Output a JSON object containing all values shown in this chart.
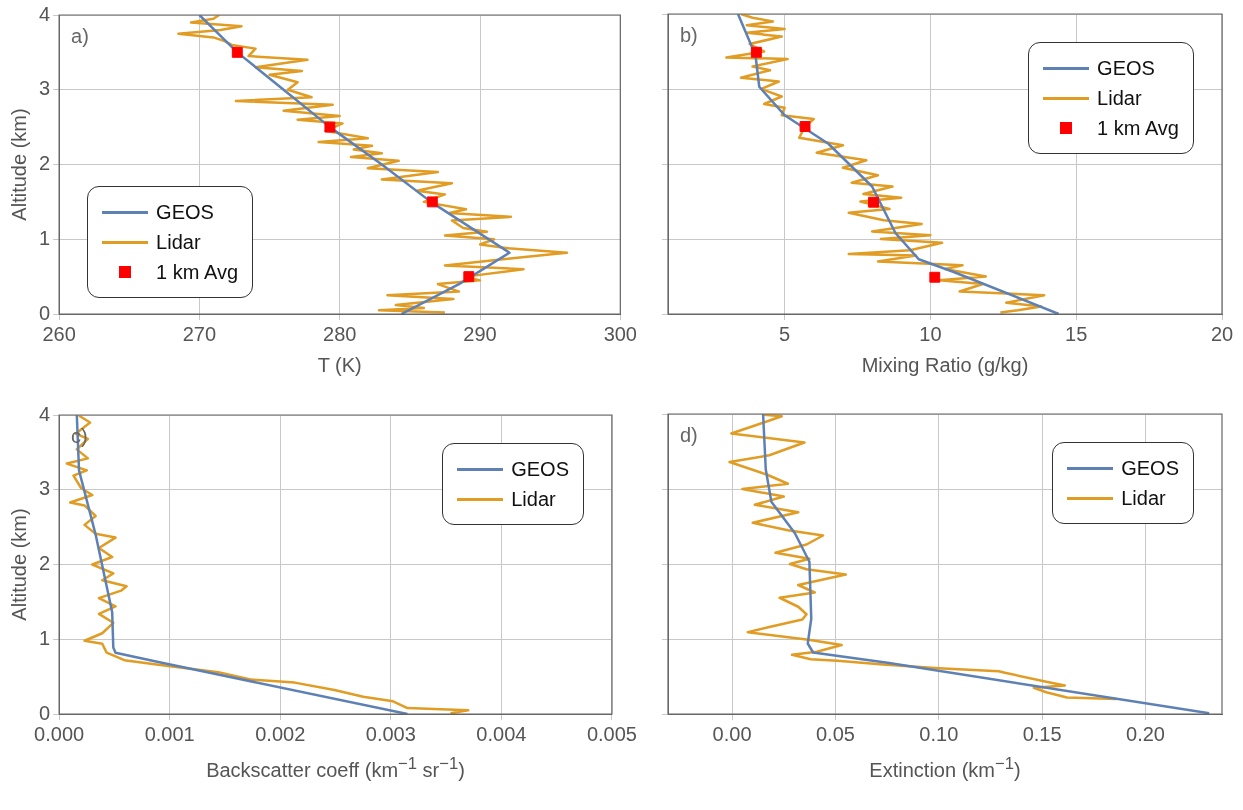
{
  "chart_data": [
    {
      "type": "line",
      "xlabel": "T (K)",
      "ylabel": "Altitude (km)",
      "annotations": [
        "a)"
      ],
      "xlim": [
        260,
        300
      ],
      "xticks": [
        260,
        270,
        280,
        290,
        300
      ],
      "ylim": [
        0,
        4
      ],
      "yticks": [
        0,
        1,
        2,
        3,
        4
      ],
      "grid": true,
      "legend": "bottom left",
      "series": [
        {
          "name": "GEOS",
          "color": "#5e81b5",
          "x": [
            284.4,
            288.5,
            292.1,
            286.5,
            283,
            279.3,
            276,
            272.7,
            270
          ],
          "values": [
            0,
            0.4,
            0.82,
            1.5,
            2.0,
            2.5,
            3.0,
            3.5,
            4
          ]
        },
        {
          "name": "Lidar",
          "color": "#e19c24",
          "x": [
            287.5,
            282.8,
            286.0,
            284.0,
            288.1,
            283.4,
            288.5,
            287.0,
            290.0,
            289.0,
            293.1,
            287.5,
            292.5,
            296.2,
            292.0,
            290.0,
            291.0,
            287.5,
            290.5,
            288.8,
            288.0,
            292.2,
            287.8,
            289.0,
            286.0,
            287.5,
            285.5,
            288.0,
            283.0,
            287.0,
            282.0,
            284.2,
            280.8,
            283.0,
            281.0,
            282.3,
            278.5,
            282.0,
            279.0,
            280.2,
            277.0,
            280.0,
            276.0,
            279.5,
            272.6,
            278.0,
            276.3,
            277.0,
            275.0,
            277.3,
            274.0,
            277.7,
            273.5,
            274.0,
            272.3,
            271.8,
            271.0,
            268.5,
            271.5,
            273.0,
            269.4,
            271.0,
            271.4
          ],
          "values": [
            0.02,
            0.05,
            0.08,
            0.12,
            0.2,
            0.25,
            0.3,
            0.4,
            0.45,
            0.5,
            0.6,
            0.65,
            0.75,
            0.82,
            0.88,
            0.93,
            1.0,
            1.05,
            1.1,
            1.15,
            1.25,
            1.3,
            1.35,
            1.4,
            1.5,
            1.6,
            1.65,
            1.75,
            1.8,
            1.9,
            1.95,
            2.05,
            2.1,
            2.15,
            2.2,
            2.25,
            2.3,
            2.35,
            2.45,
            2.55,
            2.6,
            2.65,
            2.72,
            2.8,
            2.85,
            2.9,
            3.0,
            3.1,
            3.2,
            3.25,
            3.3,
            3.4,
            3.45,
            3.55,
            3.6,
            3.65,
            3.7,
            3.75,
            3.8,
            3.85,
            3.9,
            3.95,
            4.0
          ]
        },
        {
          "name": "1 km Avg",
          "color": "#ff0000",
          "type": "scatter",
          "marker": "square",
          "x": [
            289.2,
            286.6,
            279.3,
            272.7
          ],
          "values": [
            0.5,
            1.5,
            2.5,
            3.5
          ]
        }
      ]
    },
    {
      "type": "line",
      "xlabel": "Mixing Ratio (g/kg)",
      "annotations": [
        "b)"
      ],
      "xlim": [
        1,
        20
      ],
      "xticks": [
        5,
        10,
        15,
        20
      ],
      "ylim": [
        0,
        4
      ],
      "yticks": [
        0,
        1,
        2,
        3,
        4
      ],
      "tick_labels": "x",
      "grid": true,
      "legend": "top right",
      "series": [
        {
          "name": "GEOS",
          "color": "#5e81b5",
          "x": [
            14.4,
            10.8,
            9.6,
            8.8,
            8.0,
            6.5,
            5.0,
            4.13,
            4.0,
            3.4
          ],
          "values": [
            0,
            0.56,
            0.73,
            1.08,
            1.7,
            2.27,
            2.65,
            3.03,
            3.45,
            4
          ]
        },
        {
          "name": "Lidar",
          "color": "#e19c24",
          "x": [
            12.4,
            13.0,
            13.8,
            12.6,
            13.9,
            11.0,
            11.8,
            10.3,
            11.9,
            10.5,
            11.1,
            8.2,
            9.5,
            7.2,
            9.3,
            10.4,
            8.3,
            10.0,
            8.0,
            9.7,
            8.4,
            7.2,
            8.6,
            7.6,
            9.0,
            7.7,
            8.7,
            7.3,
            8.2,
            7.0,
            7.8,
            6.1,
            7.0,
            5.5,
            5.7,
            6.0,
            4.9,
            5.0,
            4.3,
            4.9,
            4.2,
            4.8,
            3.5,
            4.5,
            3.9,
            5.1,
            3.0,
            4.3,
            3.8,
            4.9,
            3.7,
            5.0,
            3.7,
            4.6,
            3.9,
            3.5
          ],
          "values": [
            0.02,
            0.05,
            0.1,
            0.15,
            0.25,
            0.3,
            0.4,
            0.45,
            0.5,
            0.6,
            0.65,
            0.7,
            0.78,
            0.8,
            0.85,
            0.95,
            1.0,
            1.05,
            1.1,
            1.2,
            1.25,
            1.35,
            1.4,
            1.5,
            1.55,
            1.6,
            1.7,
            1.75,
            1.85,
            1.95,
            2.05,
            2.15,
            2.25,
            2.35,
            2.5,
            2.6,
            2.65,
            2.75,
            2.8,
            2.9,
            3.0,
            3.1,
            3.15,
            3.25,
            3.3,
            3.4,
            3.42,
            3.5,
            3.6,
            3.7,
            3.75,
            3.8,
            3.85,
            3.9,
            3.95,
            4.0
          ]
        },
        {
          "name": "1 km Avg",
          "color": "#ff0000",
          "type": "scatter",
          "marker": "square",
          "x": [
            10.15,
            8.05,
            5.7,
            4.03
          ],
          "values": [
            0.49,
            1.49,
            2.5,
            3.49
          ]
        }
      ]
    },
    {
      "type": "line",
      "xlabel": "Backscatter coeff (km$^{−1}$ sr$^{−1}$)",
      "ylabel": "Altitude (km)",
      "annotations": [
        "c)"
      ],
      "xlim": [
        0,
        0.005
      ],
      "xticks": [
        {
          "value": 0,
          "label": "0.000"
        },
        {
          "value": 0.001,
          "label": "0.001"
        },
        {
          "value": 0.002,
          "label": "0.002"
        },
        {
          "value": 0.003,
          "label": "0.003"
        },
        {
          "value": 0.004,
          "label": "0.004"
        },
        {
          "value": 0.005,
          "label": "0.005"
        }
      ],
      "ylim": [
        0,
        4
      ],
      "yticks": [
        0,
        1,
        2,
        3,
        4
      ],
      "grid": true,
      "legend": "top right",
      "series": [
        {
          "name": "GEOS",
          "color": "#5e81b5",
          "x": [
            0.00315,
            0.00095,
            0.00051,
            0.00049,
            0.00048,
            0.00033,
            0.00018,
            0.00016
          ],
          "values": [
            0,
            0.68,
            0.82,
            0.89,
            1.36,
            2.4,
            3.26,
            4
          ]
        },
        {
          "name": "Lidar",
          "color": "#e19c24",
          "x": [
            0.00354,
            0.0037,
            0.00315,
            0.00302,
            0.00275,
            0.00249,
            0.00213,
            0.00174,
            0.00144,
            0.00095,
            0.00059,
            0.00043,
            0.00039,
            0.00023,
            0.00039,
            0.00049,
            0.00036,
            0.00051,
            0.00036,
            0.00056,
            0.00061,
            0.00039,
            0.00049,
            0.0003,
            0.00048,
            0.00036,
            0.00051,
            0.00033,
            0.00023,
            0.00033,
            0.00023,
            0.0001,
            0.0003,
            0.0002,
            0.00013,
            0.00025,
            7e-05,
            0.00026,
            0.00016,
            0.00026,
            0.00015,
            0.00028,
            0.00018
          ],
          "values": [
            0.01,
            0.05,
            0.08,
            0.17,
            0.23,
            0.32,
            0.42,
            0.46,
            0.56,
            0.65,
            0.72,
            0.82,
            0.94,
            0.98,
            1.08,
            1.22,
            1.34,
            1.44,
            1.55,
            1.65,
            1.71,
            1.79,
            1.88,
            2.0,
            2.1,
            2.22,
            2.36,
            2.41,
            2.53,
            2.65,
            2.79,
            2.83,
            2.93,
            3.02,
            3.19,
            3.26,
            3.35,
            3.42,
            3.54,
            3.68,
            3.75,
            3.9,
            3.99
          ]
        }
      ]
    },
    {
      "type": "line",
      "xlabel": "Extinction (km$^{−1}$)",
      "annotations": [
        "d)"
      ],
      "xlim": [
        -0.031,
        0.237
      ],
      "xticks": [
        {
          "value": 0,
          "label": "0.00"
        },
        {
          "value": 0.05,
          "label": "0.05"
        },
        {
          "value": 0.1,
          "label": "0.10"
        },
        {
          "value": 0.15,
          "label": "0.15"
        },
        {
          "value": 0.2,
          "label": "0.20"
        }
      ],
      "ylim": [
        0,
        4
      ],
      "yticks": [
        0,
        1,
        2,
        3,
        4
      ],
      "tick_labels": "x",
      "grid": true,
      "legend": "top right",
      "series": [
        {
          "name": "GEOS",
          "color": "#5e81b5",
          "x": [
            0.2308,
            0.076,
            0.0392,
            0.0366,
            0.0383,
            0.0374,
            0.0304,
            0.019,
            0.0163,
            0.015
          ],
          "values": [
            0.01,
            0.68,
            0.82,
            0.94,
            1.27,
            2.03,
            2.41,
            2.83,
            3.26,
            4
          ]
        },
        {
          "name": "Lidar",
          "color": "#e19c24",
          "x": [
            0.186,
            0.162,
            0.152,
            0.146,
            0.161,
            0.152,
            0.132,
            0.129,
            0.1,
            0.073,
            0.051,
            0.038,
            0.029,
            0.041,
            0.053,
            0.037,
            0.0076,
            0.018,
            0.034,
            0.036,
            0.032,
            0.023,
            0.04,
            0.032,
            0.055,
            0.036,
            0.028,
            0.0374,
            0.021,
            0.036,
            0.044,
            0.027,
            0.01,
            0.032,
            0.011,
            0.025,
            0.005,
            0.027,
            0.017,
            -0.0012,
            0.018,
            0.035,
            -0.0004,
            0.0093,
            0.024,
            0.0155
          ],
          "values": [
            0.2,
            0.22,
            0.29,
            0.35,
            0.38,
            0.43,
            0.55,
            0.57,
            0.61,
            0.66,
            0.71,
            0.73,
            0.79,
            0.83,
            0.92,
            0.99,
            1.09,
            1.16,
            1.26,
            1.33,
            1.43,
            1.55,
            1.62,
            1.72,
            1.86,
            1.93,
            2.0,
            2.07,
            2.15,
            2.26,
            2.38,
            2.45,
            2.55,
            2.69,
            2.79,
            2.9,
            3.0,
            3.07,
            3.19,
            3.36,
            3.45,
            3.62,
            3.74,
            3.83,
            3.97,
            3.99
          ]
        }
      ]
    }
  ]
}
